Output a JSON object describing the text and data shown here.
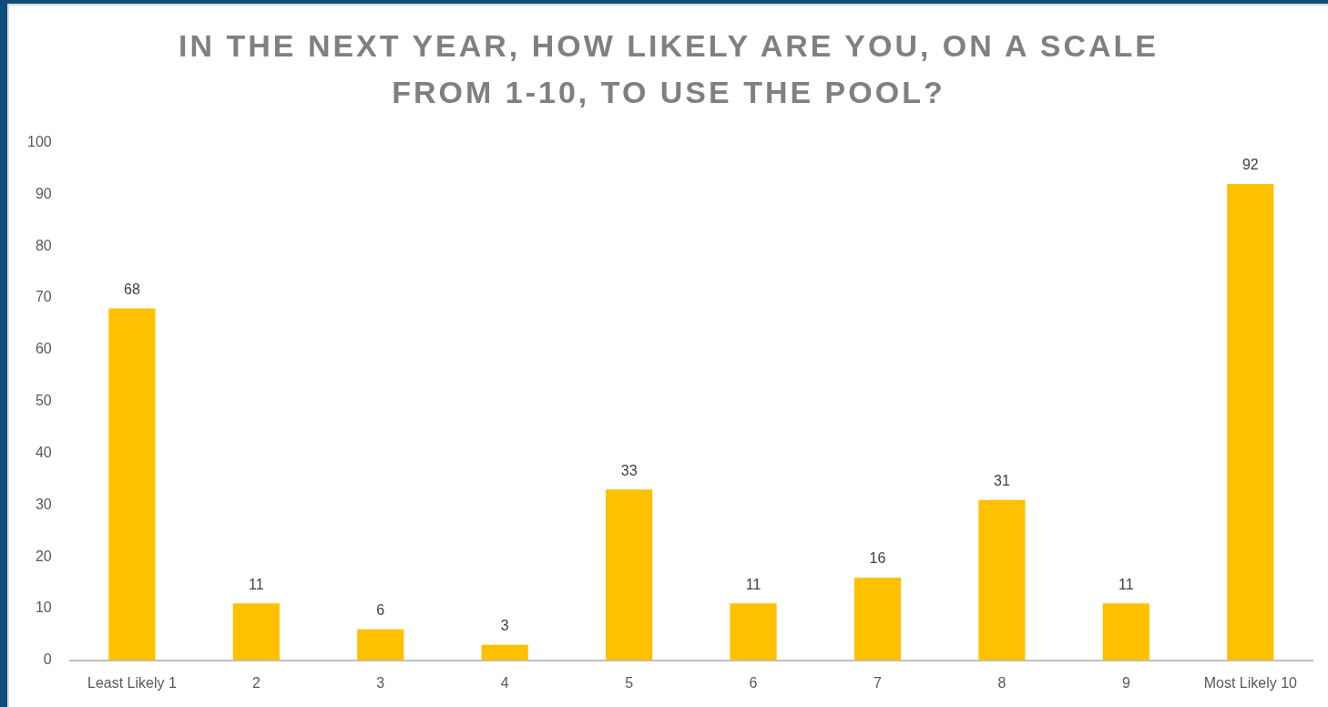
{
  "chart_data": {
    "type": "bar",
    "title": "IN THE NEXT YEAR, HOW LIKELY ARE YOU, ON A SCALE FROM 1-10, TO USE THE POOL?",
    "categories": [
      "Least Likely 1",
      "2",
      "3",
      "4",
      "5",
      "6",
      "7",
      "8",
      "9",
      "Most Likely 10"
    ],
    "values": [
      68,
      11,
      6,
      3,
      33,
      11,
      16,
      31,
      11,
      92
    ],
    "color": "#ffc000",
    "ylim": [
      0,
      100
    ],
    "yticks": [
      0,
      10,
      20,
      30,
      40,
      50,
      60,
      70,
      80,
      90,
      100
    ],
    "data_labels": true
  }
}
